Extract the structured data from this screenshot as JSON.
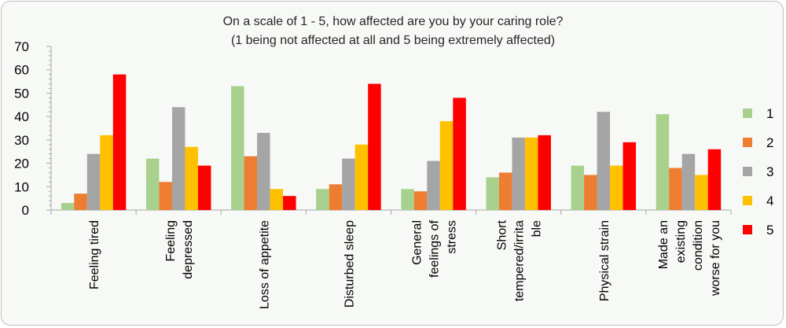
{
  "chart_data": {
    "type": "bar",
    "title": "On a scale of 1 - 5, how affected are you by your caring role?",
    "subtitle": "(1 being not affected at all and 5 being extremely affected)",
    "xlabel": "",
    "ylabel": "",
    "ylim": [
      0,
      70
    ],
    "yticks": [
      "0",
      "10",
      "20",
      "30",
      "40",
      "50",
      "60",
      "70"
    ],
    "categories": [
      [
        "Feeling tired"
      ],
      [
        "Feeling",
        "depressed"
      ],
      [
        "Loss of appetite"
      ],
      [
        "Disturbed sleep"
      ],
      [
        "General",
        "feelings of",
        "stress"
      ],
      [
        "Short",
        "tempered/irrita",
        "ble"
      ],
      [
        "Physical strain"
      ],
      [
        "Made an",
        "existing",
        "condition",
        "worse for you"
      ]
    ],
    "series": [
      {
        "name": "1",
        "color": "#a9d18e",
        "values": [
          3,
          22,
          53,
          9,
          9,
          14,
          19,
          41
        ]
      },
      {
        "name": "2",
        "color": "#ed7d31",
        "values": [
          7,
          12,
          23,
          11,
          8,
          16,
          15,
          18
        ]
      },
      {
        "name": "3",
        "color": "#a5a5a5",
        "values": [
          24,
          44,
          33,
          22,
          21,
          31,
          42,
          24
        ]
      },
      {
        "name": "4",
        "color": "#ffc000",
        "values": [
          32,
          27,
          9,
          28,
          38,
          31,
          19,
          15
        ]
      },
      {
        "name": "5",
        "color": "#ff0000",
        "values": [
          58,
          19,
          6,
          54,
          48,
          32,
          29,
          26
        ]
      }
    ],
    "legend_position": "right",
    "grid": false
  }
}
